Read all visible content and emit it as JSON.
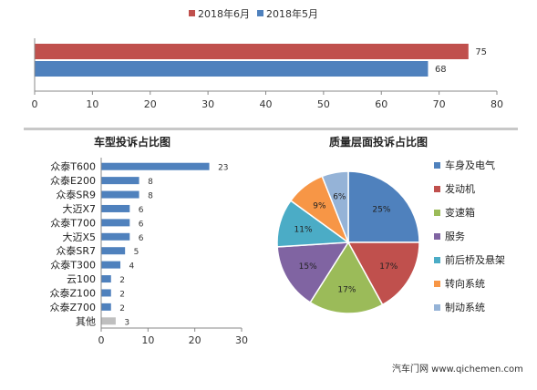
{
  "chart_data": [
    {
      "type": "bar",
      "orientation": "horizontal",
      "title": "",
      "categories": [
        ""
      ],
      "series": [
        {
          "name": "2018年6月",
          "values": [
            75
          ],
          "color": "#c0504d"
        },
        {
          "name": "2018年5月",
          "values": [
            68
          ],
          "color": "#4f81bd"
        }
      ],
      "xlim": [
        0,
        80
      ],
      "x_ticks": [
        "0",
        "10",
        "20",
        "30",
        "40",
        "50",
        "60",
        "70",
        "80"
      ],
      "data_labels": [
        "75",
        "68"
      ],
      "legend": "top"
    },
    {
      "type": "bar",
      "orientation": "horizontal",
      "title": "车型投诉占比图",
      "categories": [
        "众泰T600",
        "众泰E200",
        "众泰SR9",
        "大迈X7",
        "众泰T700",
        "大迈X5",
        "众泰SR7",
        "众泰T300",
        "云100",
        "众泰Z100",
        "众泰Z700",
        "其他"
      ],
      "values": [
        23,
        8,
        8,
        6,
        6,
        6,
        5,
        4,
        2,
        2,
        2,
        3
      ],
      "data_labels": [
        "23",
        "8",
        "8",
        "6",
        "6",
        "6",
        "5",
        "4",
        "2",
        "2",
        "2",
        "3"
      ],
      "colors": {
        "bar": "#4f81bd",
        "other": "#bfbfbf"
      },
      "xlim": [
        0,
        30
      ],
      "x_ticks": [
        "0",
        "10",
        "20",
        "30"
      ]
    },
    {
      "type": "pie",
      "title": "质量层面投诉占比图",
      "slices": [
        {
          "label": "车身及电气",
          "value": 25,
          "text": "25%",
          "color": "#4f81bd"
        },
        {
          "label": "发动机",
          "value": 17,
          "text": "17%",
          "color": "#c0504d"
        },
        {
          "label": "变速箱",
          "value": 17,
          "text": "17%",
          "color": "#9bbb59"
        },
        {
          "label": "服务",
          "value": 15,
          "text": "15%",
          "color": "#8064a2"
        },
        {
          "label": "前后桥及悬架",
          "value": 11,
          "text": "11%",
          "color": "#4bacc6"
        },
        {
          "label": "转向系统",
          "value": 9,
          "text": "9%",
          "color": "#f79646"
        },
        {
          "label": "制动系统",
          "value": 6,
          "text": "6%",
          "color": "#95b3d7"
        }
      ],
      "legend": "right"
    }
  ],
  "watermark": "汽车门网 www.qichemen.com"
}
